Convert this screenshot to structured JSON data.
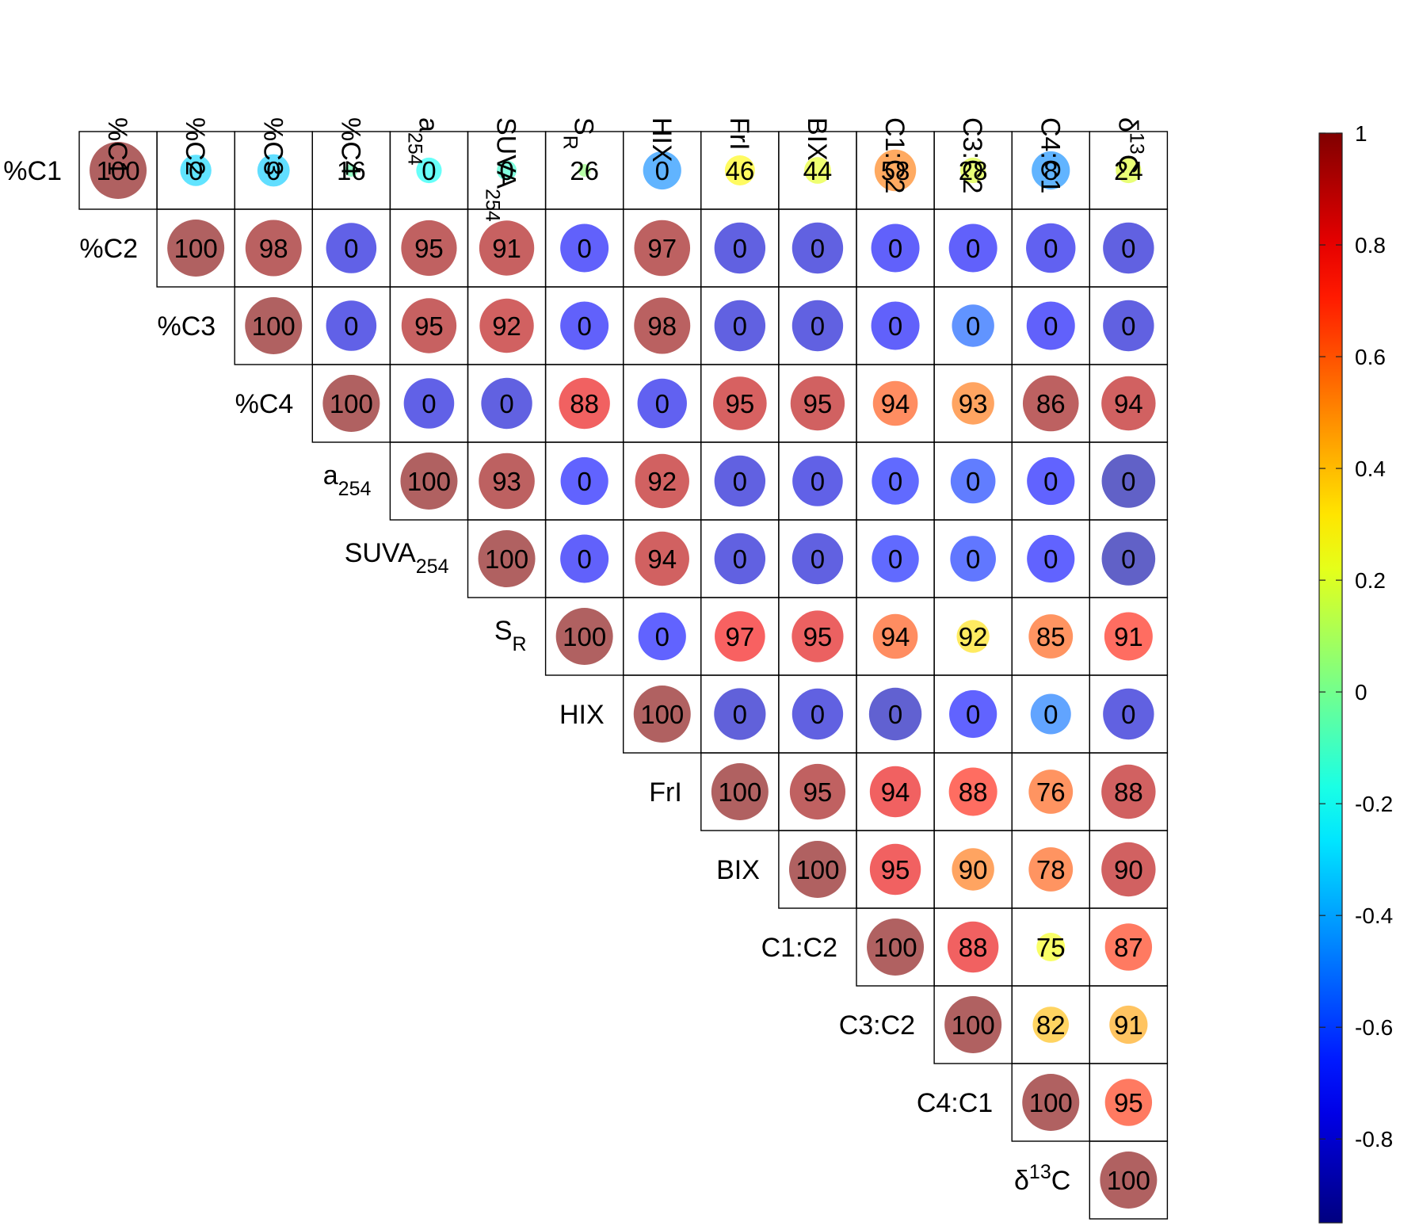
{
  "chart_data": {
    "type": "heatmap",
    "title": "",
    "variables": [
      {
        "label": "%C1"
      },
      {
        "label": "%C2"
      },
      {
        "label": "%C3"
      },
      {
        "label": "%C4"
      },
      {
        "label": "a",
        "sub": "254"
      },
      {
        "label": "SUVA",
        "sub": "254"
      },
      {
        "label": "S",
        "sub": "R"
      },
      {
        "label": "HIX"
      },
      {
        "label": "FrI"
      },
      {
        "label": "BIX"
      },
      {
        "label": "C1:C2"
      },
      {
        "label": "C3:C2"
      },
      {
        "label": "C4:C1"
      },
      {
        "label": "δ",
        "sup": "13",
        "tail": "C"
      }
    ],
    "cell_values": [
      [
        100,
        0,
        0,
        16,
        0,
        0,
        26,
        0,
        46,
        44,
        58,
        28,
        8,
        24
      ],
      [
        null,
        100,
        98,
        0,
        95,
        91,
        0,
        97,
        0,
        0,
        0,
        0,
        0,
        0
      ],
      [
        null,
        null,
        100,
        0,
        95,
        92,
        0,
        98,
        0,
        0,
        0,
        0,
        0,
        0
      ],
      [
        null,
        null,
        null,
        100,
        0,
        0,
        88,
        0,
        95,
        95,
        94,
        93,
        86,
        94
      ],
      [
        null,
        null,
        null,
        null,
        100,
        93,
        0,
        92,
        0,
        0,
        0,
        0,
        0,
        0
      ],
      [
        null,
        null,
        null,
        null,
        null,
        100,
        0,
        94,
        0,
        0,
        0,
        0,
        0,
        0
      ],
      [
        null,
        null,
        null,
        null,
        null,
        null,
        100,
        0,
        97,
        95,
        94,
        92,
        85,
        91
      ],
      [
        null,
        null,
        null,
        null,
        null,
        null,
        null,
        100,
        0,
        0,
        0,
        0,
        0,
        0
      ],
      [
        null,
        null,
        null,
        null,
        null,
        null,
        null,
        null,
        100,
        95,
        94,
        88,
        76,
        88
      ],
      [
        null,
        null,
        null,
        null,
        null,
        null,
        null,
        null,
        null,
        100,
        95,
        90,
        78,
        90
      ],
      [
        null,
        null,
        null,
        null,
        null,
        null,
        null,
        null,
        null,
        null,
        100,
        88,
        75,
        87
      ],
      [
        null,
        null,
        null,
        null,
        null,
        null,
        null,
        null,
        null,
        null,
        null,
        100,
        82,
        91
      ],
      [
        null,
        null,
        null,
        null,
        null,
        null,
        null,
        null,
        null,
        null,
        null,
        null,
        100,
        95
      ],
      [
        null,
        null,
        null,
        null,
        null,
        null,
        null,
        null,
        null,
        null,
        null,
        null,
        null,
        100
      ]
    ],
    "correlations": [
      [
        1.0,
        -0.3,
        -0.32,
        -0.05,
        -0.2,
        -0.12,
        0.05,
        -0.45,
        0.28,
        0.22,
        0.53,
        0.2,
        -0.45,
        0.2
      ],
      [
        null,
        1.0,
        0.97,
        -0.78,
        0.95,
        0.93,
        -0.72,
        0.96,
        -0.8,
        -0.8,
        -0.72,
        -0.72,
        -0.75,
        -0.8
      ],
      [
        null,
        null,
        1.0,
        -0.78,
        0.93,
        0.9,
        -0.72,
        0.97,
        -0.8,
        -0.8,
        -0.72,
        -0.55,
        -0.72,
        -0.8
      ],
      [
        null,
        null,
        null,
        1.0,
        -0.78,
        -0.8,
        0.8,
        -0.75,
        0.88,
        0.9,
        0.62,
        0.55,
        0.96,
        0.9
      ],
      [
        null,
        null,
        null,
        null,
        1.0,
        0.96,
        -0.7,
        0.9,
        -0.8,
        -0.78,
        -0.68,
        -0.62,
        -0.7,
        -0.88
      ],
      [
        null,
        null,
        null,
        null,
        null,
        1.0,
        -0.72,
        0.9,
        -0.8,
        -0.8,
        -0.68,
        -0.64,
        -0.7,
        -0.88
      ],
      [
        null,
        null,
        null,
        null,
        null,
        null,
        1.0,
        -0.7,
        0.78,
        0.82,
        0.62,
        0.33,
        0.6,
        0.72
      ],
      [
        null,
        null,
        null,
        null,
        null,
        null,
        null,
        1.0,
        -0.82,
        -0.8,
        -0.85,
        -0.7,
        -0.5,
        -0.8
      ],
      [
        null,
        null,
        null,
        null,
        null,
        null,
        null,
        null,
        1.0,
        0.95,
        0.8,
        0.72,
        0.6,
        0.9
      ],
      [
        null,
        null,
        null,
        null,
        null,
        null,
        null,
        null,
        null,
        1.0,
        0.8,
        0.55,
        0.6,
        0.9
      ],
      [
        null,
        null,
        null,
        null,
        null,
        null,
        null,
        null,
        null,
        null,
        1.0,
        0.8,
        0.25,
        0.68
      ],
      [
        null,
        null,
        null,
        null,
        null,
        null,
        null,
        null,
        null,
        null,
        null,
        1.0,
        0.4,
        0.45
      ],
      [
        null,
        null,
        null,
        null,
        null,
        null,
        null,
        null,
        null,
        null,
        null,
        null,
        1.0,
        0.68
      ],
      [
        null,
        null,
        null,
        null,
        null,
        null,
        null,
        null,
        null,
        null,
        null,
        null,
        null,
        1.0
      ]
    ],
    "colorbar": {
      "colormap": "jet",
      "range": [
        -0.95,
        1.0
      ],
      "ticks": [
        1,
        0.8,
        0.6,
        0.4,
        0.2,
        0,
        -0.2,
        -0.4,
        -0.6,
        -0.8
      ],
      "tick_labels": [
        "1",
        "0.8",
        "0.6",
        "0.4",
        "0.2",
        "0",
        "-0.2",
        "-0.4",
        "-0.6",
        "-0.8"
      ]
    },
    "marker": "circle",
    "marker_alpha": 0.62,
    "grid": true
  }
}
